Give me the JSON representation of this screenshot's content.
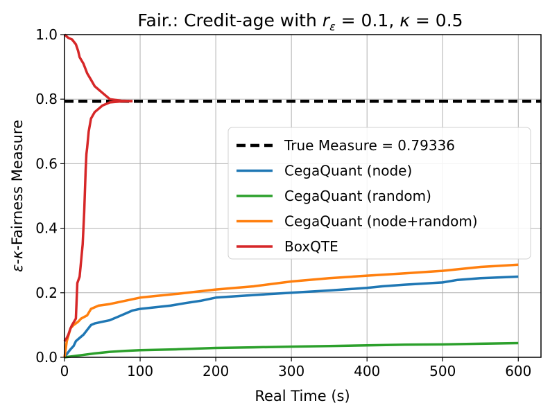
{
  "chart_data": {
    "type": "line",
    "title_parts": {
      "prefix": "Fair.: Credit-age with ",
      "r_sym": "r",
      "r_sub": "ε",
      "r_val": " = 0.1, ",
      "k_sym": "κ",
      "k_val": " = 0.5"
    },
    "xlabel": "Real Time (s)",
    "ylabel_parts": {
      "eps": "ε",
      "dash1": "-",
      "kappa": "κ",
      "rest": "-Fairness Measure"
    },
    "xlim": [
      0,
      630
    ],
    "ylim": [
      0,
      1.0
    ],
    "xticks": [
      0,
      100,
      200,
      300,
      400,
      500,
      600
    ],
    "yticks": [
      0.0,
      0.2,
      0.4,
      0.6,
      0.8,
      1.0
    ],
    "grid": true,
    "legend_position": "right-center",
    "series": [
      {
        "name": "True Measure = 0.79336",
        "color": "#000000",
        "style": "dashed",
        "points": [
          [
            0,
            0.79336
          ],
          [
            630,
            0.79336
          ]
        ]
      },
      {
        "name": "CegaQuant (node)",
        "color": "#1f77b4",
        "style": "solid",
        "points": [
          [
            0,
            0.0
          ],
          [
            3,
            0.01
          ],
          [
            8,
            0.025
          ],
          [
            12,
            0.035
          ],
          [
            15,
            0.05
          ],
          [
            20,
            0.06
          ],
          [
            25,
            0.07
          ],
          [
            30,
            0.085
          ],
          [
            35,
            0.1
          ],
          [
            40,
            0.105
          ],
          [
            50,
            0.11
          ],
          [
            60,
            0.115
          ],
          [
            70,
            0.125
          ],
          [
            80,
            0.135
          ],
          [
            90,
            0.145
          ],
          [
            100,
            0.15
          ],
          [
            120,
            0.155
          ],
          [
            140,
            0.16
          ],
          [
            160,
            0.168
          ],
          [
            180,
            0.175
          ],
          [
            200,
            0.185
          ],
          [
            250,
            0.193
          ],
          [
            300,
            0.2
          ],
          [
            350,
            0.207
          ],
          [
            400,
            0.215
          ],
          [
            420,
            0.22
          ],
          [
            450,
            0.225
          ],
          [
            500,
            0.232
          ],
          [
            520,
            0.24
          ],
          [
            550,
            0.245
          ],
          [
            600,
            0.25
          ]
        ]
      },
      {
        "name": "CegaQuant (random)",
        "color": "#2ca02c",
        "style": "solid",
        "points": [
          [
            0,
            0.0
          ],
          [
            10,
            0.003
          ],
          [
            20,
            0.006
          ],
          [
            40,
            0.012
          ],
          [
            60,
            0.017
          ],
          [
            80,
            0.02
          ],
          [
            100,
            0.022
          ],
          [
            150,
            0.025
          ],
          [
            200,
            0.029
          ],
          [
            250,
            0.031
          ],
          [
            300,
            0.033
          ],
          [
            350,
            0.035
          ],
          [
            400,
            0.037
          ],
          [
            450,
            0.039
          ],
          [
            500,
            0.04
          ],
          [
            550,
            0.042
          ],
          [
            600,
            0.044
          ]
        ]
      },
      {
        "name": "CegaQuant (node+random)",
        "color": "#ff7f0e",
        "style": "solid",
        "points": [
          [
            0,
            0.0
          ],
          [
            3,
            0.05
          ],
          [
            8,
            0.09
          ],
          [
            12,
            0.1
          ],
          [
            18,
            0.11
          ],
          [
            22,
            0.12
          ],
          [
            30,
            0.13
          ],
          [
            35,
            0.15
          ],
          [
            45,
            0.16
          ],
          [
            60,
            0.165
          ],
          [
            80,
            0.175
          ],
          [
            100,
            0.185
          ],
          [
            120,
            0.19
          ],
          [
            150,
            0.197
          ],
          [
            200,
            0.21
          ],
          [
            250,
            0.22
          ],
          [
            300,
            0.235
          ],
          [
            350,
            0.245
          ],
          [
            400,
            0.253
          ],
          [
            450,
            0.26
          ],
          [
            500,
            0.268
          ],
          [
            550,
            0.28
          ],
          [
            600,
            0.287
          ]
        ]
      },
      {
        "name": "BoxQTE",
        "color": "#d62728",
        "style": "solid",
        "points_upper": [
          [
            0,
            1.0
          ],
          [
            5,
            0.99
          ],
          [
            10,
            0.985
          ],
          [
            15,
            0.97
          ],
          [
            18,
            0.95
          ],
          [
            20,
            0.93
          ],
          [
            25,
            0.91
          ],
          [
            30,
            0.88
          ],
          [
            35,
            0.86
          ],
          [
            40,
            0.84
          ],
          [
            50,
            0.82
          ],
          [
            60,
            0.8
          ],
          [
            75,
            0.795
          ],
          [
            90,
            0.794
          ]
        ],
        "points_lower": [
          [
            0,
            0.05
          ],
          [
            3,
            0.06
          ],
          [
            5,
            0.07
          ],
          [
            8,
            0.09
          ],
          [
            10,
            0.1
          ],
          [
            15,
            0.12
          ],
          [
            17,
            0.23
          ],
          [
            20,
            0.25
          ],
          [
            22,
            0.3
          ],
          [
            24,
            0.35
          ],
          [
            26,
            0.45
          ],
          [
            28,
            0.58
          ],
          [
            29,
            0.63
          ],
          [
            30,
            0.65
          ],
          [
            32,
            0.7
          ],
          [
            35,
            0.74
          ],
          [
            40,
            0.76
          ],
          [
            45,
            0.77
          ],
          [
            50,
            0.78
          ],
          [
            60,
            0.79
          ],
          [
            75,
            0.793
          ],
          [
            90,
            0.794
          ]
        ]
      }
    ]
  }
}
